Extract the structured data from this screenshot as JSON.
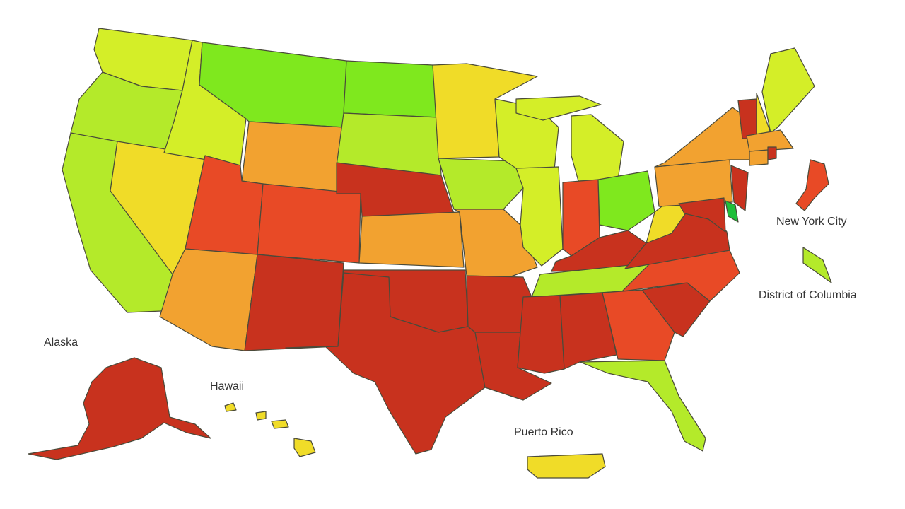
{
  "labels": {
    "alaska": "Alaska",
    "hawaii": "Hawaii",
    "puerto_rico": "Puerto Rico",
    "new_york_city": "New York City",
    "district_of_columbia": "District of Columbia"
  },
  "palette": {
    "dark_red": "#c8321e",
    "red_orange": "#e84a26",
    "orange": "#f2a230",
    "yellow": "#f0dc28",
    "yellow_green": "#d4ee28",
    "light_green": "#b4ea2a",
    "green": "#7fe81e",
    "bright_green": "#1fbf3a"
  },
  "regions": [
    {
      "id": "washington",
      "color": "yellow_green"
    },
    {
      "id": "oregon",
      "color": "light_green"
    },
    {
      "id": "california",
      "color": "light_green"
    },
    {
      "id": "nevada",
      "color": "yellow"
    },
    {
      "id": "idaho",
      "color": "yellow_green"
    },
    {
      "id": "montana",
      "color": "green"
    },
    {
      "id": "wyoming",
      "color": "orange"
    },
    {
      "id": "utah",
      "color": "red_orange"
    },
    {
      "id": "arizona",
      "color": "orange"
    },
    {
      "id": "colorado",
      "color": "red_orange"
    },
    {
      "id": "new-mexico",
      "color": "dark_red"
    },
    {
      "id": "north-dakota",
      "color": "green"
    },
    {
      "id": "south-dakota",
      "color": "light_green"
    },
    {
      "id": "nebraska",
      "color": "dark_red"
    },
    {
      "id": "kansas",
      "color": "orange"
    },
    {
      "id": "oklahoma",
      "color": "dark_red"
    },
    {
      "id": "texas",
      "color": "dark_red"
    },
    {
      "id": "minnesota",
      "color": "yellow"
    },
    {
      "id": "iowa",
      "color": "light_green"
    },
    {
      "id": "missouri",
      "color": "orange"
    },
    {
      "id": "arkansas",
      "color": "dark_red"
    },
    {
      "id": "louisiana",
      "color": "dark_red"
    },
    {
      "id": "wisconsin",
      "color": "yellow_green"
    },
    {
      "id": "illinois",
      "color": "yellow_green"
    },
    {
      "id": "michigan",
      "color": "yellow_green"
    },
    {
      "id": "indiana",
      "color": "red_orange"
    },
    {
      "id": "ohio",
      "color": "green"
    },
    {
      "id": "kentucky",
      "color": "dark_red"
    },
    {
      "id": "tennessee",
      "color": "light_green"
    },
    {
      "id": "mississippi",
      "color": "dark_red"
    },
    {
      "id": "alabama",
      "color": "dark_red"
    },
    {
      "id": "georgia",
      "color": "red_orange"
    },
    {
      "id": "florida",
      "color": "light_green"
    },
    {
      "id": "south-carolina",
      "color": "dark_red"
    },
    {
      "id": "north-carolina",
      "color": "red_orange"
    },
    {
      "id": "virginia",
      "color": "dark_red"
    },
    {
      "id": "west-virginia",
      "color": "yellow"
    },
    {
      "id": "pennsylvania",
      "color": "orange"
    },
    {
      "id": "new-york",
      "color": "orange"
    },
    {
      "id": "new-jersey",
      "color": "dark_red"
    },
    {
      "id": "delaware",
      "color": "bright_green"
    },
    {
      "id": "maryland",
      "color": "dark_red"
    },
    {
      "id": "vermont",
      "color": "dark_red"
    },
    {
      "id": "new-hampshire",
      "color": "yellow"
    },
    {
      "id": "maine",
      "color": "yellow_green"
    },
    {
      "id": "massachusetts",
      "color": "orange"
    },
    {
      "id": "connecticut",
      "color": "orange"
    },
    {
      "id": "rhode-island",
      "color": "dark_red"
    },
    {
      "id": "new-york-city",
      "color": "red_orange"
    },
    {
      "id": "district-of-columbia",
      "color": "light_green"
    },
    {
      "id": "alaska",
      "color": "dark_red"
    },
    {
      "id": "hawaii",
      "color": "yellow"
    },
    {
      "id": "puerto-rico",
      "color": "yellow"
    }
  ]
}
